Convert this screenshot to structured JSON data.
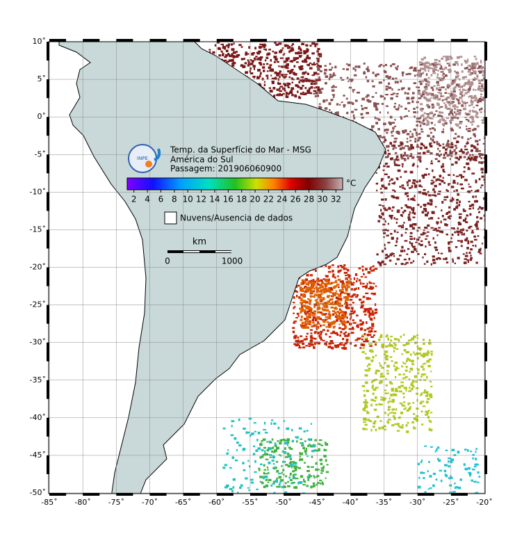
{
  "map": {
    "title": [
      "Temp. da Superfície do Mar - MSG",
      "América do Sul",
      "Passagem: 201906060900"
    ],
    "logo_text": "INPE",
    "colorbar": {
      "ticks": [
        2,
        4,
        6,
        8,
        10,
        12,
        14,
        16,
        18,
        20,
        22,
        24,
        26,
        28,
        30,
        32
      ],
      "range": [
        1,
        33
      ],
      "unit": "°C"
    },
    "legend": "Nuvens/Ausencia de dados",
    "scale": {
      "label": "km",
      "ticks": [
        "0",
        "1000"
      ]
    },
    "lon_ticks": [
      "-85˚",
      "-80˚",
      "-75˚",
      "-70˚",
      "-65˚",
      "-60˚",
      "-55˚",
      "-50˚",
      "-45˚",
      "-40˚",
      "-35˚",
      "-30˚",
      "-25˚",
      "-20˚"
    ],
    "lat_ticks": [
      "10˚",
      "5˚",
      "0˚",
      "-5˚",
      "-10˚",
      "-15˚",
      "-20˚",
      "-25˚",
      "-30˚",
      "-35˚",
      "-40˚",
      "-45˚",
      "-50˚"
    ]
  }
}
